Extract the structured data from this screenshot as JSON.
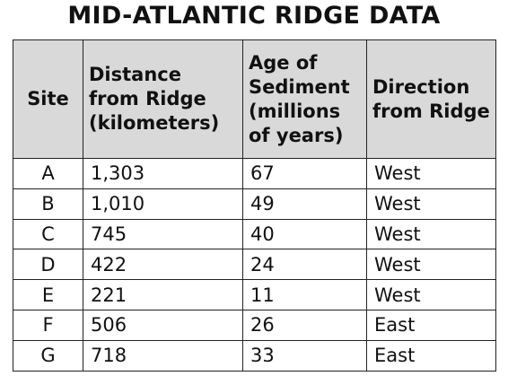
{
  "title": "MID-ATLANTIC RIDGE DATA",
  "columns": [
    "Site",
    "Distance from Ridge (kilometers)",
    "Age of Sediment (millions of years)",
    "Direction from Ridge"
  ],
  "rows": [
    [
      "A",
      "1,303",
      "67",
      "West"
    ],
    [
      "B",
      "1,010",
      "49",
      "West"
    ],
    [
      "C",
      "745",
      "40",
      "West"
    ],
    [
      "D",
      "422",
      "24",
      "West"
    ],
    [
      "E",
      "221",
      "11",
      "West"
    ],
    [
      "F",
      "506",
      "26",
      "East"
    ],
    [
      "G",
      "718",
      "33",
      "East"
    ]
  ],
  "colors": {
    "header_bg": "#d9d9d9",
    "border": "#222222"
  }
}
